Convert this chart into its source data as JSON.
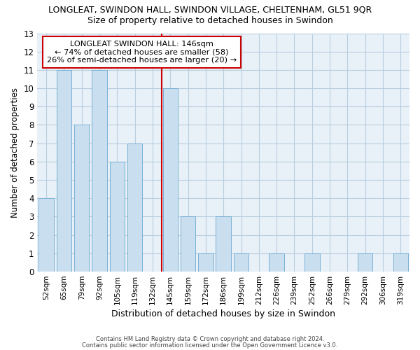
{
  "title": "LONGLEAT, SWINDON HALL, SWINDON VILLAGE, CHELTENHAM, GL51 9QR",
  "subtitle": "Size of property relative to detached houses in Swindon",
  "xlabel": "Distribution of detached houses by size in Swindon",
  "ylabel": "Number of detached properties",
  "categories": [
    "52sqm",
    "65sqm",
    "79sqm",
    "92sqm",
    "105sqm",
    "119sqm",
    "132sqm",
    "145sqm",
    "159sqm",
    "172sqm",
    "186sqm",
    "199sqm",
    "212sqm",
    "226sqm",
    "239sqm",
    "252sqm",
    "266sqm",
    "279sqm",
    "292sqm",
    "306sqm",
    "319sqm"
  ],
  "values": [
    4,
    11,
    8,
    11,
    6,
    7,
    0,
    10,
    3,
    1,
    3,
    1,
    0,
    1,
    0,
    1,
    0,
    0,
    1,
    0,
    1
  ],
  "highlight_index": 7,
  "bar_color": "#c9dff0",
  "bar_edge_color": "#7ab0d4",
  "ylim": [
    0,
    13
  ],
  "yticks": [
    0,
    1,
    2,
    3,
    4,
    5,
    6,
    7,
    8,
    9,
    10,
    11,
    12,
    13
  ],
  "annotation_title": "LONGLEAT SWINDON HALL: 146sqm",
  "annotation_line1": "← 74% of detached houses are smaller (58)",
  "annotation_line2": "26% of semi-detached houses are larger (20) →",
  "footnote1": "Contains HM Land Registry data © Crown copyright and database right 2024.",
  "footnote2": "Contains public sector information licensed under the Open Government Licence v3.0.",
  "bg_color": "#ffffff",
  "plot_bg_color": "#e8f0f8",
  "grid_color": "#b8cede",
  "annotation_box_color": "#ffffff",
  "annotation_box_edge": "#cc0000",
  "redline_color": "#cc0000"
}
